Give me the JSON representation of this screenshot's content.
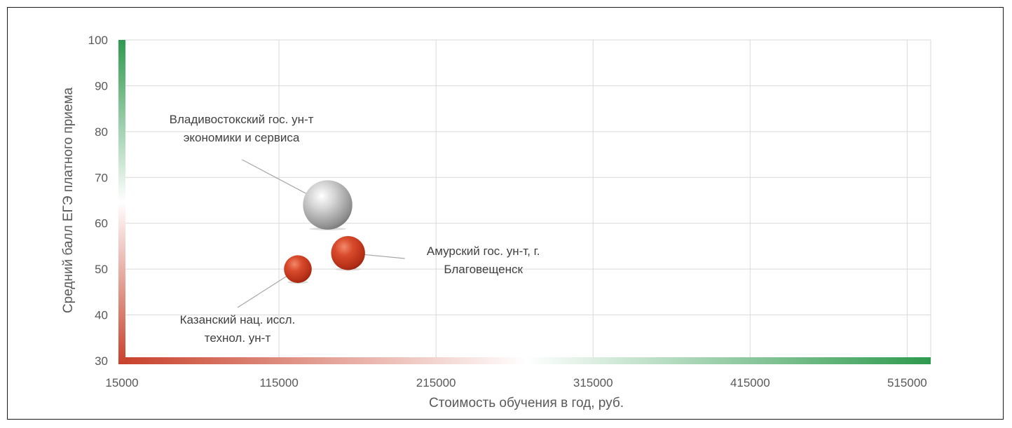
{
  "chart_data": {
    "type": "scatter",
    "title": "",
    "xlabel": "Стоимость обучения в год, руб.",
    "ylabel": "Средний балл ЕГЭ платного приема",
    "xlim": [
      15000,
      530000
    ],
    "ylim": [
      30,
      100
    ],
    "x_ticks": [
      "15000",
      "115000",
      "215000",
      "315000",
      "415000",
      "515000"
    ],
    "y_ticks": [
      "30",
      "40",
      "50",
      "60",
      "70",
      "80",
      "90",
      "100"
    ],
    "grid": true,
    "legend": "none",
    "axis_gradient_colors": [
      "#c8412b",
      "#ffffff",
      "#2e9a4e"
    ],
    "points": [
      {
        "label_lines": [
          "Владивостокский гос. ун-т",
          "экономики и сервиса"
        ],
        "x": 146000,
        "y": 64,
        "size": 3.2,
        "color": "#a8a8a8",
        "label_pos": "upper-left"
      },
      {
        "label_lines": [
          "Амурский гос. ун-т, г.",
          "Благовещенск"
        ],
        "x": 159000,
        "y": 53.5,
        "size": 2.2,
        "color": "#c8381e",
        "label_pos": "right"
      },
      {
        "label_lines": [
          "Казанский нац. иссл.",
          "технол. ун-т"
        ],
        "x": 127000,
        "y": 50,
        "size": 1.8,
        "color": "#c8381e",
        "label_pos": "lower-left"
      }
    ]
  }
}
